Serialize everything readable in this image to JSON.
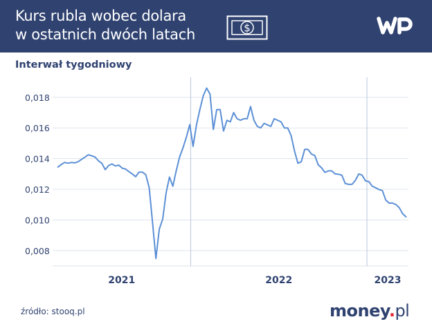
{
  "header": {
    "title_line1": "Kurs rubla wobec dolara",
    "title_line2": "w ostatnich dwóch latach",
    "money_icon_text": "$",
    "logo_text": "WP"
  },
  "subtitle": "Interwał tygodniowy",
  "source": "źródło: stooq.pl",
  "brand": {
    "name": "money",
    "dot": ".",
    "suffix": "pl"
  },
  "colors": {
    "header_bg": "#2f4270",
    "line": "#5b8fd6",
    "grid": "#dde3ec",
    "text": "#2f4270",
    "brand_dot": "#e3262f"
  },
  "chart_data": {
    "type": "line",
    "title": "Kurs rubla wobec dolara w ostatnich dwóch latach",
    "subtitle": "Interwał tygodniowy",
    "xlabel": "",
    "ylabel": "",
    "grid": true,
    "legend": "none",
    "ylim": [
      0.007,
      0.0193
    ],
    "yticks": [
      0.008,
      0.01,
      0.012,
      0.014,
      0.016,
      0.018
    ],
    "ytick_labels": [
      "0,008",
      "0,010",
      "0,012",
      "0,014",
      "0,016",
      "0,018"
    ],
    "year_labels": [
      "2021",
      "2022",
      "2023"
    ],
    "year_boundaries": [
      "2022-01-01",
      "2023-01-01"
    ],
    "x_range": [
      "2021-03-21",
      "2023-03-28"
    ],
    "series": [
      {
        "name": "",
        "x": [
          "2021-04-01",
          "2021-04-08",
          "2021-04-15",
          "2021-04-22",
          "2021-04-29",
          "2021-05-06",
          "2021-05-13",
          "2021-05-20",
          "2021-05-27",
          "2021-06-03",
          "2021-06-10",
          "2021-06-17",
          "2021-06-24",
          "2021-07-01",
          "2021-07-08",
          "2021-07-15",
          "2021-07-22",
          "2021-07-29",
          "2021-08-05",
          "2021-08-12",
          "2021-08-19",
          "2021-08-26",
          "2021-09-02",
          "2021-09-09",
          "2021-09-16",
          "2021-09-23",
          "2021-09-30",
          "2021-10-07",
          "2021-10-14",
          "2021-10-21",
          "2021-10-28",
          "2021-11-04",
          "2021-11-11",
          "2021-11-18",
          "2021-11-25",
          "2021-12-02",
          "2021-12-09",
          "2021-12-16",
          "2021-12-23",
          "2021-12-30",
          "2022-01-06",
          "2022-01-13",
          "2022-01-20",
          "2022-01-27",
          "2022-02-03",
          "2022-02-10",
          "2022-02-17",
          "2022-02-24",
          "2022-03-03",
          "2022-03-10",
          "2022-03-17",
          "2022-03-24",
          "2022-03-31",
          "2022-04-07",
          "2022-04-14",
          "2022-04-21",
          "2022-04-28",
          "2022-05-05",
          "2022-05-12",
          "2022-05-19",
          "2022-05-26",
          "2022-06-02",
          "2022-06-09",
          "2022-06-16",
          "2022-06-23",
          "2022-06-30",
          "2022-07-07",
          "2022-07-14",
          "2022-07-21",
          "2022-07-28",
          "2022-08-04",
          "2022-08-11",
          "2022-08-18",
          "2022-08-25",
          "2022-09-01",
          "2022-09-08",
          "2022-09-15",
          "2022-09-22",
          "2022-09-29",
          "2022-10-06",
          "2022-10-13",
          "2022-10-20",
          "2022-10-27",
          "2022-11-03",
          "2022-11-10",
          "2022-11-17",
          "2022-11-24",
          "2022-12-01",
          "2022-12-08",
          "2022-12-15",
          "2022-12-22",
          "2022-12-29",
          "2023-01-05",
          "2023-01-12",
          "2023-01-19",
          "2023-01-26",
          "2023-02-02",
          "2023-02-09",
          "2023-02-16",
          "2023-02-23",
          "2023-03-02",
          "2023-03-09",
          "2023-03-16",
          "2023-03-23"
        ],
        "values": [
          0.01345,
          0.01362,
          0.01375,
          0.0137,
          0.01375,
          0.01372,
          0.0138,
          0.01395,
          0.0141,
          0.01425,
          0.01418,
          0.0141,
          0.01385,
          0.0137,
          0.01328,
          0.01355,
          0.01365,
          0.01352,
          0.01358,
          0.01338,
          0.01332,
          0.01315,
          0.013,
          0.01282,
          0.01312,
          0.01312,
          0.01295,
          0.0121,
          0.0098,
          0.00748,
          0.0094,
          0.01005,
          0.01175,
          0.0128,
          0.0122,
          0.0132,
          0.0141,
          0.0147,
          0.0154,
          0.01622,
          0.0148,
          0.0162,
          0.0172,
          0.0181,
          0.0186,
          0.0182,
          0.0159,
          0.0172,
          0.0172,
          0.0158,
          0.0165,
          0.0164,
          0.017,
          0.0166,
          0.0165,
          0.0166,
          0.0166,
          0.0174,
          0.0165,
          0.0161,
          0.016,
          0.0163,
          0.0162,
          0.0161,
          0.0166,
          0.0165,
          0.0164,
          0.016,
          0.016,
          0.0155,
          0.0145,
          0.0137,
          0.0138,
          0.0146,
          0.0146,
          0.0143,
          0.0142,
          0.0136,
          0.0134,
          0.0131,
          0.0132,
          0.0132,
          0.013,
          0.01298,
          0.01292,
          0.01238,
          0.01232,
          0.01232,
          0.01258,
          0.013,
          0.01292,
          0.01255,
          0.0125,
          0.0122,
          0.0121,
          0.01198,
          0.01192,
          0.0113,
          0.0111,
          0.0111,
          0.011,
          0.0108,
          0.0104,
          0.0102
        ]
      }
    ]
  }
}
